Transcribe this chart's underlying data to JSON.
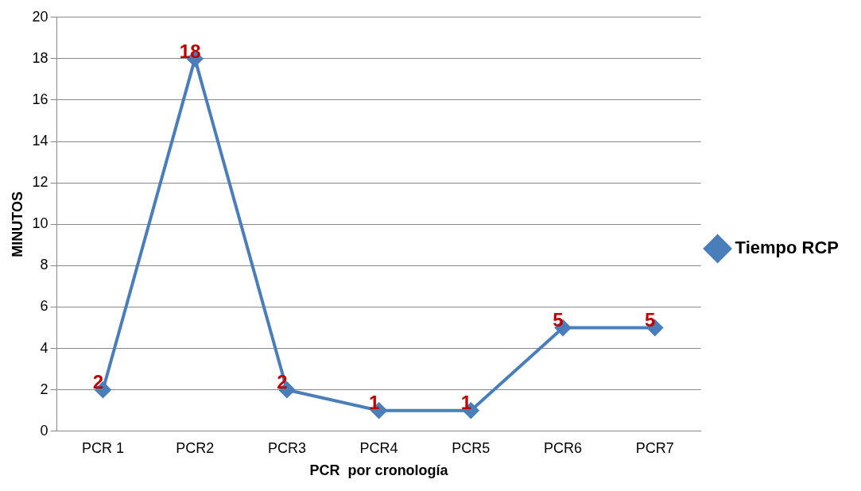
{
  "chart_data": {
    "type": "line",
    "xlabel": "PCR  por cronología",
    "ylabel": "MINUTOS",
    "categories": [
      "PCR 1",
      "PCR2",
      "PCR3",
      "PCR4",
      "PCR5",
      "PCR6",
      "PCR7"
    ],
    "series": [
      {
        "name": "Tiempo RCP",
        "color": "#4a7ebb",
        "values": [
          2,
          18,
          2,
          1,
          1,
          5,
          5
        ]
      }
    ],
    "ylim": [
      0,
      20
    ],
    "yticks": [
      0,
      2,
      4,
      6,
      8,
      10,
      12,
      14,
      16,
      18,
      20
    ],
    "grid": "y",
    "legend": "right",
    "marker": "diamond",
    "line_style": "solid",
    "data_labels": true
  }
}
